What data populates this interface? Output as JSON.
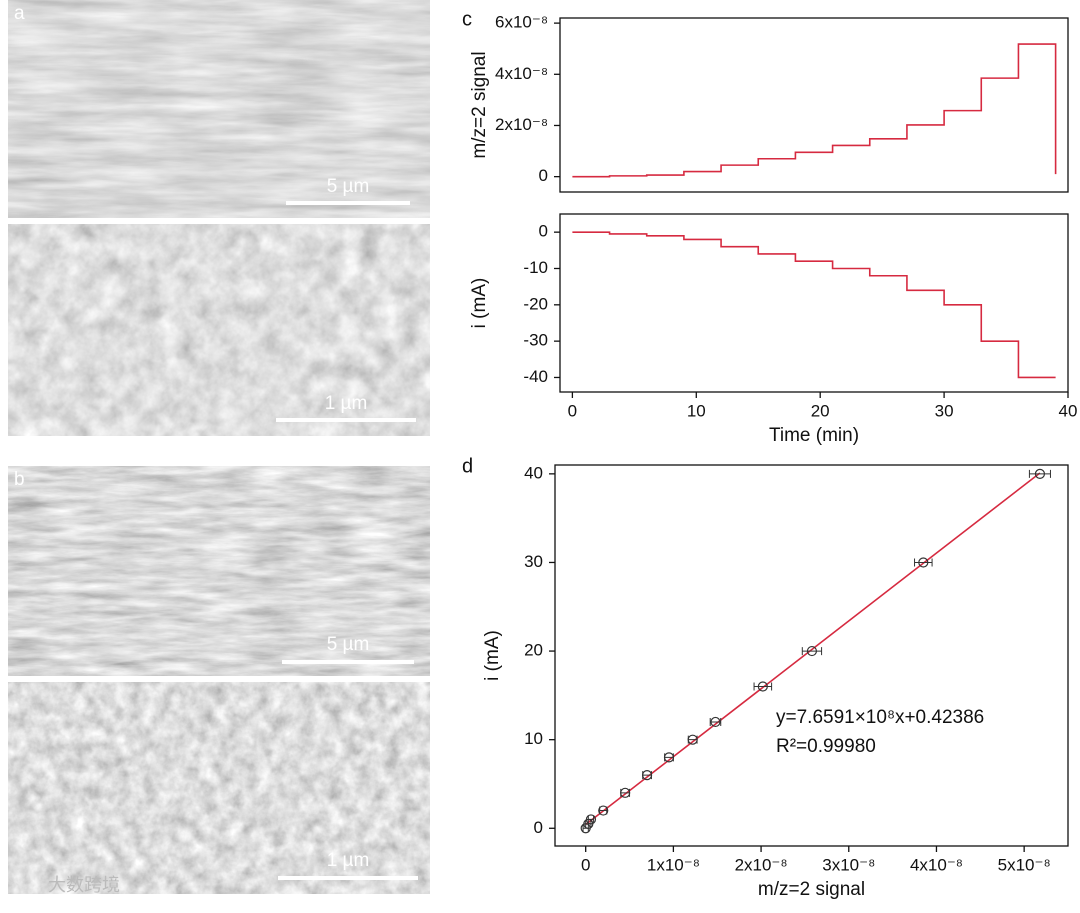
{
  "images": [
    {
      "label": "a",
      "scale_bars": [
        "5 µm",
        "1 µm"
      ]
    },
    {
      "label": "b",
      "scale_bars": [
        "5 µm",
        "1 µm"
      ]
    }
  ],
  "watermark": "大数跨境",
  "chart_data": [
    {
      "type": "line",
      "panel_label": "c",
      "ylabel": "m/z=2 signal",
      "xlim": [
        -1,
        40
      ],
      "ylim": [
        -6e-09,
        6.2e-08
      ],
      "yticks": [
        0,
        {
          "value": 2e-08,
          "label": "2x10⁻⁸"
        },
        {
          "value": 4e-08,
          "label": "4x10⁻⁸"
        },
        {
          "value": 6e-08,
          "label": "6x10⁻⁸"
        }
      ],
      "x": [
        0,
        3,
        3,
        6,
        6,
        9,
        9,
        12,
        12,
        15,
        15,
        18,
        18,
        21,
        21,
        24,
        24,
        27,
        27,
        30,
        30,
        33,
        33,
        36,
        36,
        39,
        39
      ],
      "series": [
        {
          "color": "#d62a40",
          "values": [
            0,
            0,
            3e-10,
            3e-10,
            6e-10,
            6e-10,
            2e-09,
            2e-09,
            4.5e-09,
            4.5e-09,
            7e-09,
            7e-09,
            9.5e-09,
            9.5e-09,
            1.22e-08,
            1.22e-08,
            1.48e-08,
            1.48e-08,
            2.02e-08,
            2.02e-08,
            2.58e-08,
            2.58e-08,
            3.85e-08,
            3.85e-08,
            5.18e-08,
            5.18e-08,
            1e-09
          ]
        }
      ]
    },
    {
      "type": "line",
      "xlabel": "Time (min)",
      "ylabel": "i  (mA)",
      "xlim": [
        -1,
        40
      ],
      "ylim": [
        -44,
        5
      ],
      "xticks": [
        0,
        10,
        20,
        30,
        40
      ],
      "yticks": [
        -40,
        -30,
        -20,
        -10,
        0
      ],
      "x": [
        0,
        3,
        3,
        6,
        6,
        9,
        9,
        12,
        12,
        15,
        15,
        18,
        18,
        21,
        21,
        24,
        24,
        27,
        27,
        30,
        30,
        33,
        33,
        36,
        36,
        39
      ],
      "series": [
        {
          "color": "#d62a40",
          "values": [
            0,
            0,
            -0.5,
            -0.5,
            -1,
            -1,
            -2,
            -2,
            -4,
            -4,
            -6,
            -6,
            -8,
            -8,
            -10,
            -10,
            -12,
            -12,
            -16,
            -16,
            -20,
            -20,
            -30,
            -30,
            -40,
            -40
          ]
        }
      ]
    },
    {
      "type": "scatter",
      "panel_label": "d",
      "xlabel": "m/z=2 signal",
      "ylabel": "i  (mA)",
      "xlim": [
        -3.5e-09,
        5.5e-08
      ],
      "ylim": [
        -2,
        41
      ],
      "xticks": [
        0,
        {
          "value": 1e-08,
          "label": "1x10⁻⁸"
        },
        {
          "value": 2e-08,
          "label": "2x10⁻⁸"
        },
        {
          "value": 3e-08,
          "label": "3x10⁻⁸"
        },
        {
          "value": 4e-08,
          "label": "4x10⁻⁸"
        },
        {
          "value": 5e-08,
          "label": "5x10⁻⁸"
        }
      ],
      "yticks": [
        0,
        10,
        20,
        30,
        40
      ],
      "x": [
        0,
        3e-10,
        6e-10,
        2e-09,
        4.5e-09,
        7e-09,
        9.5e-09,
        1.22e-08,
        1.48e-08,
        2.02e-08,
        2.58e-08,
        3.85e-08,
        5.18e-08
      ],
      "x_errors": [
        3e-10,
        3e-10,
        3e-10,
        4e-10,
        5e-10,
        5e-10,
        5e-10,
        5e-10,
        6e-10,
        1e-09,
        1.1e-09,
        1e-09,
        1.2e-09
      ],
      "values": [
        0,
        0.5,
        1,
        2,
        4,
        6,
        8,
        10,
        12,
        16,
        20,
        30,
        40
      ],
      "color": "#333333",
      "fit": {
        "slope": 765910000,
        "intercept": 0.42386,
        "color": "#d62a40"
      },
      "annotations": [
        "y=7.6591×10⁸x+0.42386",
        "R²=0.99980"
      ]
    }
  ]
}
